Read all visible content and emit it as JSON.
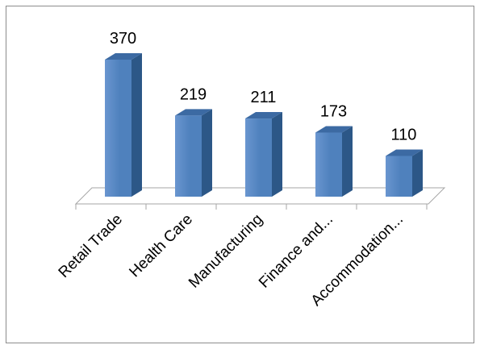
{
  "chart_data": {
    "type": "bar",
    "style": "3d-column",
    "categories": [
      "Retail Trade",
      "Health Care",
      "Manufacturing",
      "Finance and...",
      "Accommodation..."
    ],
    "values": [
      370,
      219,
      211,
      173,
      110
    ],
    "data_labels": [
      "370",
      "219",
      "211",
      "173",
      "110"
    ],
    "title": "",
    "xlabel": "",
    "ylabel": "",
    "ylim": [
      0,
      370
    ],
    "grid": false,
    "legend": "none",
    "colors": {
      "bar_front": "#4f81bd",
      "bar_front_light": "#6a96d0",
      "bar_side": "#2c5787",
      "bar_top": "#3c6aa3",
      "floor_stroke": "#a6a6a6",
      "frame": "#8c8c8c"
    }
  }
}
